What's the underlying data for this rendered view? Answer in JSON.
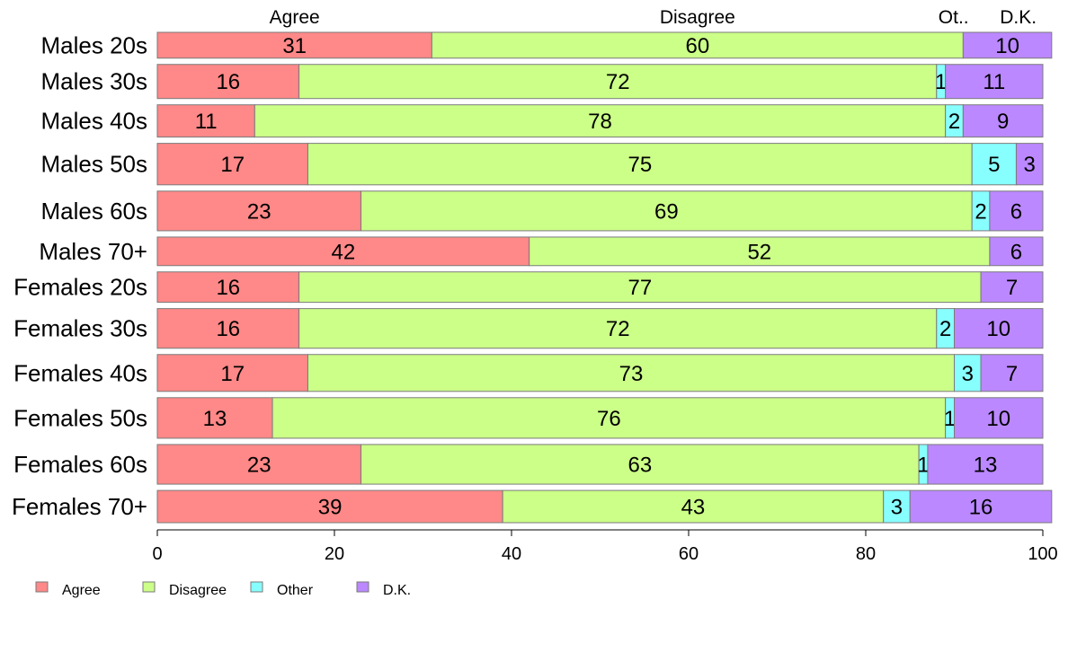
{
  "chart_data": {
    "type": "bar",
    "orientation": "horizontal",
    "stacked": true,
    "title": "",
    "xlabel": "",
    "ylabel": "",
    "xlim": [
      0,
      100
    ],
    "x_ticks": [
      0,
      20,
      40,
      60,
      80,
      100
    ],
    "grid": false,
    "legend_position": "bottom-left",
    "top_labels": [
      "Agree",
      "Disagree",
      "Ot..",
      "D.K."
    ],
    "categories": [
      "Males 20s",
      "Males 30s",
      "Males 40s",
      "Males 50s",
      "Males 60s",
      "Males 70+",
      "Females 20s",
      "Females 30s",
      "Females 40s",
      "Females 50s",
      "Females 60s",
      "Females 70+"
    ],
    "bar_weights": [
      28,
      37,
      35,
      45,
      43,
      31,
      33,
      43,
      40,
      44,
      43,
      35
    ],
    "series": [
      {
        "name": "Agree",
        "color": "#ff8888",
        "values": [
          31,
          16,
          11,
          17,
          23,
          42,
          16,
          16,
          17,
          13,
          23,
          39
        ]
      },
      {
        "name": "Disagree",
        "color": "#ccff88",
        "values": [
          60,
          72,
          78,
          75,
          69,
          52,
          77,
          72,
          73,
          76,
          63,
          43
        ]
      },
      {
        "name": "Other",
        "color": "#88ffff",
        "values": [
          0,
          1,
          2,
          5,
          2,
          0,
          0,
          2,
          3,
          1,
          1,
          3
        ]
      },
      {
        "name": "D.K.",
        "color": "#bb88ff",
        "values": [
          10,
          11,
          9,
          3,
          6,
          6,
          7,
          10,
          7,
          10,
          13,
          16
        ]
      }
    ]
  }
}
